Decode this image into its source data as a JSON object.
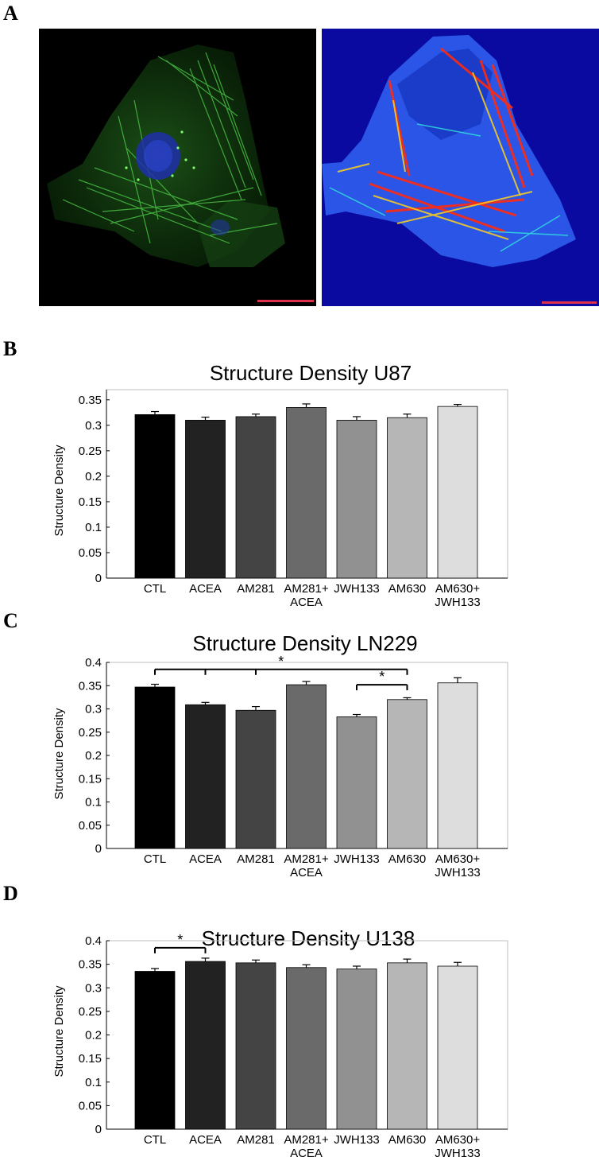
{
  "panels": {
    "a": "A",
    "b": "B",
    "c": "C",
    "d": "D"
  },
  "images": {
    "left": "fluorescence micrograph of glioma cell (green actin filaments, blue nucleus) with red scale bar",
    "right": "structure density heat map of the same cell (dark blue background, red/yellow/cyan stress fibers) with red scale bar"
  },
  "colors": {
    "bars": [
      "#000000",
      "#222222",
      "#444444",
      "#6a6a6a",
      "#919191",
      "#b6b6b6",
      "#dddddd"
    ],
    "scale_bar": "#e0314a",
    "micro_background": "#000000",
    "heatmap_background": "#0a0aa0"
  },
  "chart_data": [
    {
      "type": "bar",
      "title": "Structure Density U87",
      "ylabel": "Structure Density",
      "categories": [
        "CTL",
        "ACEA",
        "AM281",
        "AM281+\nACEA",
        "JWH133",
        "AM630",
        "AM630+\nJWH133"
      ],
      "values": [
        0.321,
        0.31,
        0.317,
        0.335,
        0.31,
        0.315,
        0.337
      ],
      "errors": [
        0.006,
        0.006,
        0.005,
        0.007,
        0.007,
        0.007,
        0.004
      ],
      "ylim": [
        0,
        0.37
      ],
      "yticks": [
        "0",
        "0.05",
        "0.1",
        "0.15",
        "0.2",
        "0.25",
        "0.3",
        "0.35"
      ],
      "significance": []
    },
    {
      "type": "bar",
      "title": "Structure Density LN229",
      "ylabel": "Structure Density",
      "categories": [
        "CTL",
        "ACEA",
        "AM281",
        "AM281+\nACEA",
        "JWH133",
        "AM630",
        "AM630+\nJWH133"
      ],
      "values": [
        0.347,
        0.309,
        0.297,
        0.352,
        0.283,
        0.32,
        0.356
      ],
      "errors": [
        0.006,
        0.005,
        0.008,
        0.007,
        0.005,
        0.004,
        0.011
      ],
      "ylim": [
        0,
        0.4
      ],
      "yticks": [
        "0",
        "0.05",
        "0.1",
        "0.15",
        "0.2",
        "0.25",
        "0.3",
        "0.35",
        "0.4"
      ],
      "significance": [
        {
          "from": 0,
          "to": 5,
          "ticks": [
            0,
            1,
            2,
            5
          ],
          "y": 0.385,
          "label": "*"
        },
        {
          "from": 4,
          "to": 5,
          "ticks": [
            4,
            5
          ],
          "y": 0.352,
          "label": "*"
        }
      ]
    },
    {
      "type": "bar",
      "title": "Structure Density U138",
      "ylabel": "Structure Density",
      "categories": [
        "CTL",
        "ACEA",
        "AM281",
        "AM281+\nACEA",
        "JWH133",
        "AM630",
        "AM630+\nJWH133"
      ],
      "values": [
        0.335,
        0.356,
        0.353,
        0.343,
        0.34,
        0.353,
        0.346
      ],
      "errors": [
        0.006,
        0.007,
        0.006,
        0.006,
        0.006,
        0.008,
        0.008
      ],
      "ylim": [
        0,
        0.4
      ],
      "yticks": [
        "0",
        "0.05",
        "0.1",
        "0.15",
        "0.2",
        "0.25",
        "0.3",
        "0.35",
        "0.4"
      ],
      "significance": [
        {
          "from": 0,
          "to": 1,
          "ticks": [
            0,
            1
          ],
          "y": 0.385,
          "label": "*"
        }
      ]
    }
  ]
}
